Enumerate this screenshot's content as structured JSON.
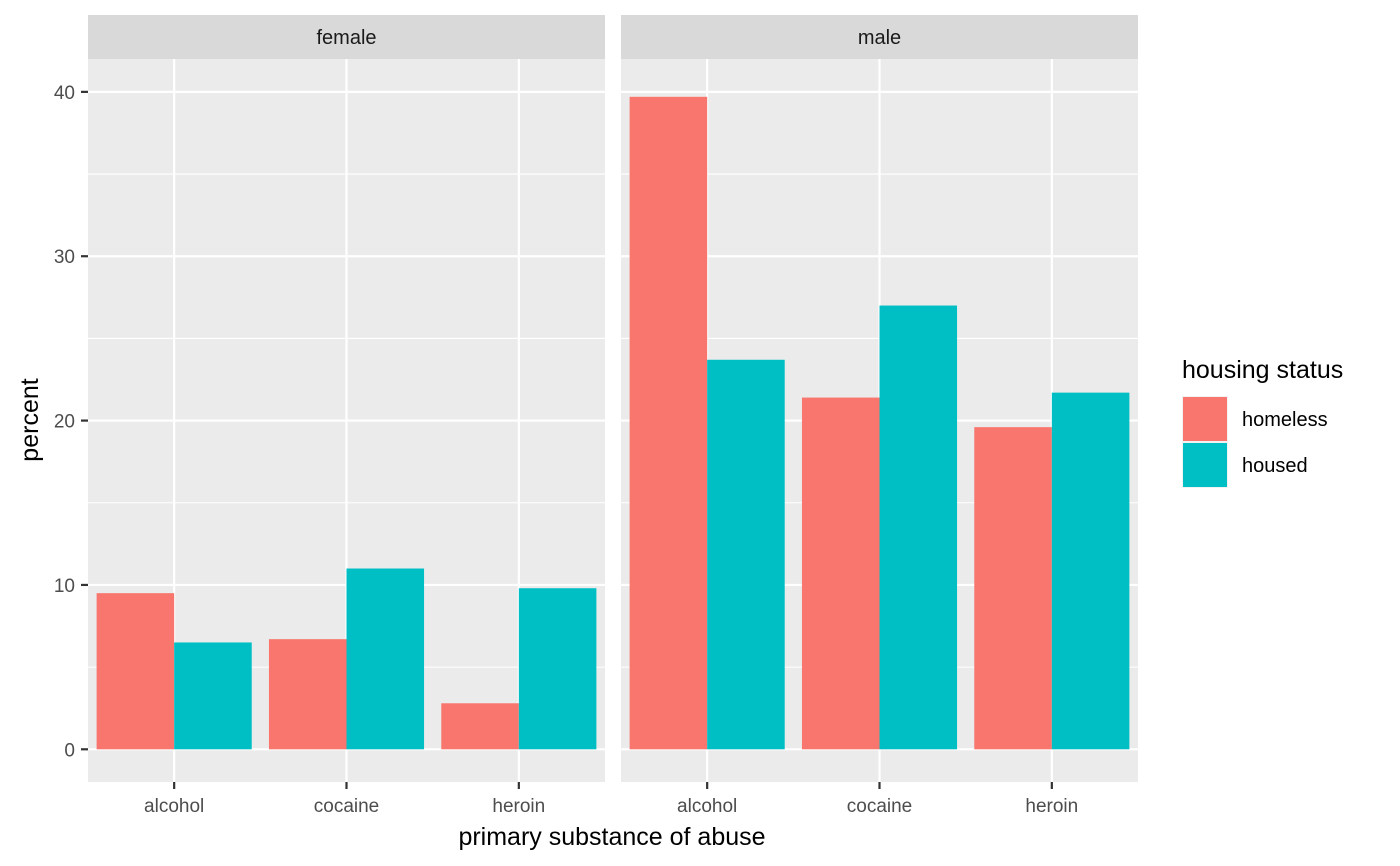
{
  "chart_data": {
    "type": "bar",
    "facet_variable": "sex",
    "categories": [
      "alcohol",
      "cocaine",
      "heroin"
    ],
    "xlabel": "primary substance of abuse",
    "ylabel": "percent",
    "ylim": [
      -1.99,
      42
    ],
    "yticks": [
      0,
      10,
      20,
      30,
      40
    ],
    "legend": {
      "title": "housing status",
      "placement": "right",
      "entries": [
        {
          "name": "homeless",
          "color": "#F8766D"
        },
        {
          "name": "housed",
          "color": "#00BFC4"
        }
      ]
    },
    "panels": [
      {
        "strip_label": "female",
        "series": [
          {
            "name": "homeless",
            "values": [
              9.5,
              6.7,
              2.8
            ]
          },
          {
            "name": "housed",
            "values": [
              6.5,
              11.0,
              9.8
            ]
          }
        ]
      },
      {
        "strip_label": "male",
        "series": [
          {
            "name": "homeless",
            "values": [
              39.7,
              21.4,
              19.6
            ]
          },
          {
            "name": "housed",
            "values": [
              23.7,
              27.0,
              21.7
            ]
          }
        ]
      }
    ]
  },
  "colors": {
    "panel_background": "#EBEBEB",
    "strip_background": "#D9D9D9",
    "grid": "#FFFFFF",
    "tick": "#333333"
  }
}
